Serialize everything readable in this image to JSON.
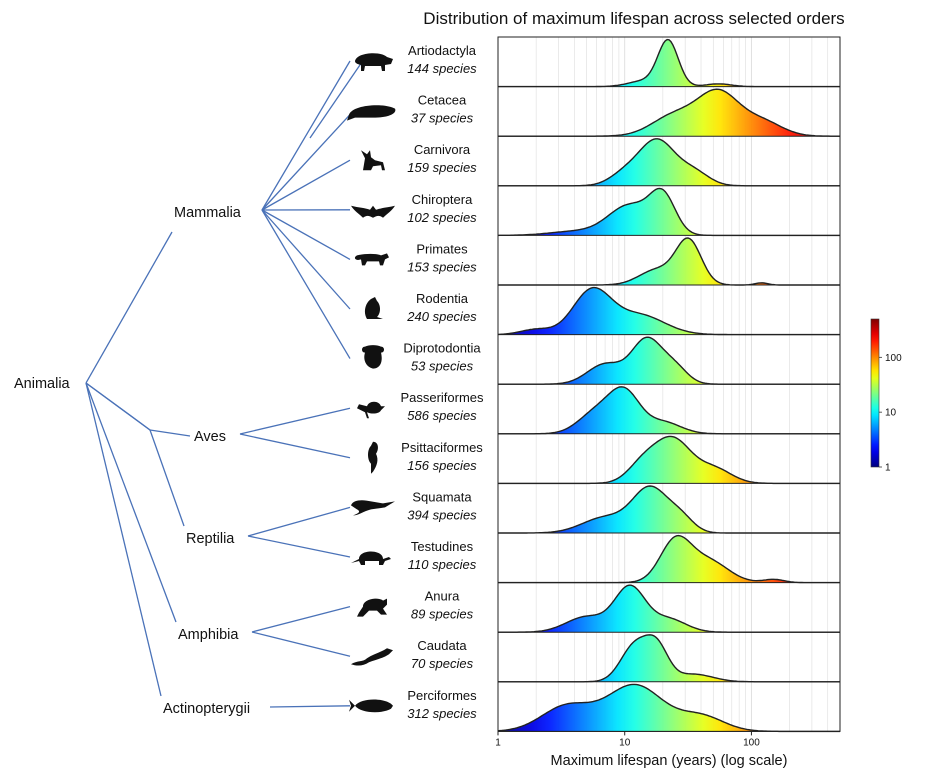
{
  "colors": {
    "tree": "#4a72b8",
    "outline": "#222222",
    "grid": "#dddddd"
  },
  "chart_data": {
    "type": "ridgeline",
    "title": "Distribution of maximum lifespan across selected orders",
    "xlabel": "Maximum lifespan (years) (log scale)",
    "xscale": "log",
    "xlim": [
      1,
      500
    ],
    "xticks": [
      1,
      10,
      100
    ],
    "xtick_labels": [
      "1",
      "10",
      "100"
    ],
    "grid": true,
    "colormap": "jet",
    "colorbar": {
      "range": [
        1,
        500
      ],
      "ticks": [
        1,
        10,
        100
      ],
      "tick_labels": [
        "1",
        "10",
        "100"
      ],
      "position": "right"
    },
    "tree": {
      "root": "Animalia",
      "clades": [
        {
          "name": "Mammalia",
          "orders": [
            0,
            1,
            2,
            3,
            4,
            5,
            6
          ]
        },
        {
          "name": "Aves",
          "orders": [
            7,
            8
          ]
        },
        {
          "name": "Reptilia",
          "orders": [
            9,
            10
          ]
        },
        {
          "name": "Amphibia",
          "orders": [
            11,
            12
          ]
        },
        {
          "name": "Actinopterygii",
          "orders": [
            13
          ]
        }
      ]
    },
    "series": [
      {
        "name": "Artiodactyla",
        "count": "144 species",
        "icon": "hog-silhouette-icon",
        "peaks": [
          [
            22,
            0.08,
            1.0
          ],
          [
            14,
            0.12,
            0.12
          ],
          [
            55,
            0.1,
            0.06
          ]
        ]
      },
      {
        "name": "Cetacea",
        "count": "37 species",
        "icon": "whale-silhouette-icon",
        "peaks": [
          [
            55,
            0.16,
            1.0
          ],
          [
            25,
            0.18,
            0.5
          ],
          [
            120,
            0.16,
            0.35
          ]
        ]
      },
      {
        "name": "Carnivora",
        "count": "159 species",
        "icon": "fox-silhouette-icon",
        "peaks": [
          [
            18,
            0.14,
            1.0
          ],
          [
            10,
            0.12,
            0.25
          ],
          [
            35,
            0.12,
            0.3
          ]
        ]
      },
      {
        "name": "Chiroptera",
        "count": "102 species",
        "icon": "bat-silhouette-icon",
        "peaks": [
          [
            20,
            0.1,
            0.75
          ],
          [
            11,
            0.17,
            0.62
          ],
          [
            4,
            0.2,
            0.08
          ]
        ]
      },
      {
        "name": "Primates",
        "count": "153 species",
        "icon": "lemur-silhouette-icon",
        "peaks": [
          [
            32,
            0.1,
            1.0
          ],
          [
            18,
            0.14,
            0.35
          ],
          [
            120,
            0.05,
            0.05
          ]
        ]
      },
      {
        "name": "Rodentia",
        "count": "240 species",
        "icon": "rodent-silhouette-icon",
        "peaks": [
          [
            5.5,
            0.15,
            1.0
          ],
          [
            13,
            0.2,
            0.45
          ],
          [
            2,
            0.12,
            0.12
          ]
        ]
      },
      {
        "name": "Diprotodontia",
        "count": "53 species",
        "icon": "koala-silhouette-icon",
        "peaks": [
          [
            15,
            0.12,
            1.0
          ],
          [
            7,
            0.14,
            0.45
          ],
          [
            25,
            0.1,
            0.35
          ]
        ]
      },
      {
        "name": "Passeriformes",
        "count": "586 species",
        "icon": "songbird-silhouette-icon",
        "peaks": [
          [
            10,
            0.12,
            1.0
          ],
          [
            6,
            0.14,
            0.55
          ],
          [
            20,
            0.14,
            0.3
          ]
        ]
      },
      {
        "name": "Psittaciformes",
        "count": "156 species",
        "icon": "parrot-silhouette-icon",
        "peaks": [
          [
            24,
            0.14,
            1.0
          ],
          [
            14,
            0.12,
            0.45
          ],
          [
            50,
            0.14,
            0.35
          ]
        ]
      },
      {
        "name": "Squamata",
        "count": "394 species",
        "icon": "lizard-silhouette-icon",
        "peaks": [
          [
            16,
            0.14,
            1.0
          ],
          [
            7,
            0.18,
            0.35
          ],
          [
            28,
            0.1,
            0.3
          ]
        ]
      },
      {
        "name": "Testudines",
        "count": "110 species",
        "icon": "turtle-silhouette-icon",
        "peaks": [
          [
            25,
            0.12,
            1.0
          ],
          [
            45,
            0.16,
            0.55
          ],
          [
            150,
            0.08,
            0.08
          ]
        ]
      },
      {
        "name": "Anura",
        "count": "89 species",
        "icon": "frog-silhouette-icon",
        "peaks": [
          [
            11,
            0.12,
            1.0
          ],
          [
            5,
            0.16,
            0.35
          ],
          [
            22,
            0.14,
            0.3
          ]
        ]
      },
      {
        "name": "Caudata",
        "count": "70 species",
        "icon": "salamander-silhouette-icon",
        "peaks": [
          [
            12,
            0.11,
            0.95
          ],
          [
            18,
            0.09,
            0.85
          ],
          [
            35,
            0.15,
            0.2
          ]
        ]
      },
      {
        "name": "Perciformes",
        "count": "312 species",
        "icon": "fish-silhouette-icon",
        "peaks": [
          [
            12,
            0.22,
            0.55
          ],
          [
            3.5,
            0.2,
            0.3
          ],
          [
            40,
            0.18,
            0.18
          ]
        ]
      }
    ]
  }
}
